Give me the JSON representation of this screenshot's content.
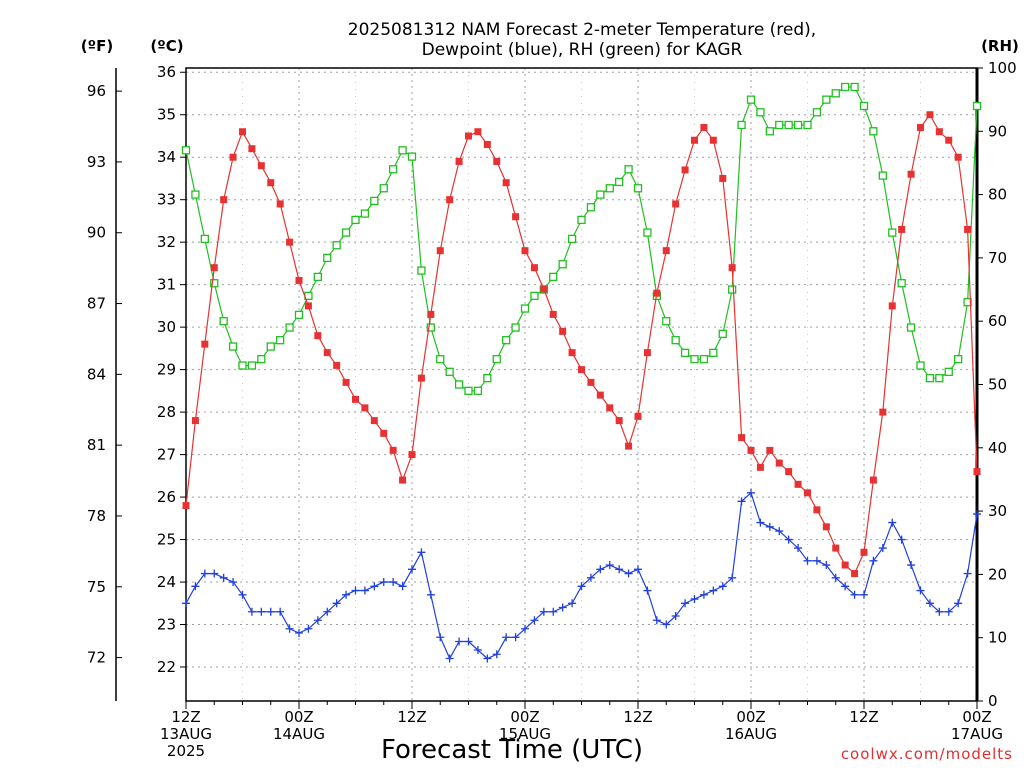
{
  "chart_data": {
    "type": "line",
    "title_line1": "2025081312 NAM Forecast 2-meter Temperature (red),",
    "title_line2": "Dewpoint (blue), RH (green) for KAGR",
    "xlabel": "Forecast Time (UTC)",
    "credit": "coolwx.com/modelts",
    "units": {
      "fahrenheit": "(ºF)",
      "celsius": "(ºC)",
      "rh": "(RH)"
    },
    "x_hours": [
      0,
      72
    ],
    "x_ticks": [
      {
        "hour": 0,
        "line1": "12Z",
        "line2": "13AUG",
        "line3": "2025"
      },
      {
        "hour": 12,
        "line1": "00Z",
        "line2": "14AUG",
        "line3": ""
      },
      {
        "hour": 24,
        "line1": "12Z",
        "line2": "",
        "line3": ""
      },
      {
        "hour": 36,
        "line1": "00Z",
        "line2": "15AUG",
        "line3": ""
      },
      {
        "hour": 48,
        "line1": "12Z",
        "line2": "",
        "line3": ""
      },
      {
        "hour": 60,
        "line1": "00Z",
        "line2": "16AUG",
        "line3": ""
      },
      {
        "hour": 72,
        "line1": "12Z",
        "line2": "",
        "line3": ""
      },
      {
        "hour": 84,
        "line1": "00Z",
        "line2": "17AUG",
        "line3": ""
      }
    ],
    "x_range": [
      0,
      84
    ],
    "celsius_range": [
      21.2,
      36.1
    ],
    "celsius_ticks": [
      22,
      23,
      24,
      25,
      26,
      27,
      28,
      29,
      30,
      31,
      32,
      33,
      34,
      35,
      36
    ],
    "fahrenheit_ticks": [
      72,
      75,
      78,
      81,
      84,
      87,
      90,
      93,
      96
    ],
    "rh_range": [
      0,
      100
    ],
    "rh_ticks": [
      0,
      10,
      20,
      30,
      40,
      50,
      60,
      70,
      80,
      90,
      100
    ],
    "colors": {
      "temperature": "#e63232",
      "dewpoint": "#2040e0",
      "rh": "#20c020",
      "grid": "#a0a0a0"
    },
    "series": [
      {
        "name": "Temperature",
        "axis": "celsius",
        "marker": "square-filled",
        "points": [
          [
            0,
            25.8
          ],
          [
            1,
            27.8
          ],
          [
            2,
            29.6
          ],
          [
            3,
            31.4
          ],
          [
            4,
            33.0
          ],
          [
            5,
            34.0
          ],
          [
            6,
            34.6
          ],
          [
            7,
            34.2
          ],
          [
            8,
            33.8
          ],
          [
            9,
            33.4
          ],
          [
            10,
            32.9
          ],
          [
            11,
            32.0
          ],
          [
            12,
            31.1
          ],
          [
            13,
            30.5
          ],
          [
            14,
            29.8
          ],
          [
            15,
            29.4
          ],
          [
            16,
            29.1
          ],
          [
            17,
            28.7
          ],
          [
            18,
            28.3
          ],
          [
            19,
            28.1
          ],
          [
            20,
            27.8
          ],
          [
            21,
            27.5
          ],
          [
            22,
            27.1
          ],
          [
            23,
            26.4
          ],
          [
            24,
            27.0
          ],
          [
            25,
            28.8
          ],
          [
            26,
            30.3
          ],
          [
            27,
            31.8
          ],
          [
            28,
            33.0
          ],
          [
            29,
            33.9
          ],
          [
            30,
            34.5
          ],
          [
            31,
            34.6
          ],
          [
            32,
            34.3
          ],
          [
            33,
            33.9
          ],
          [
            34,
            33.4
          ],
          [
            35,
            32.6
          ],
          [
            36,
            31.8
          ],
          [
            37,
            31.4
          ],
          [
            38,
            30.9
          ],
          [
            39,
            30.3
          ],
          [
            40,
            29.9
          ],
          [
            41,
            29.4
          ],
          [
            42,
            29.0
          ],
          [
            43,
            28.7
          ],
          [
            44,
            28.4
          ],
          [
            45,
            28.1
          ],
          [
            46,
            27.8
          ],
          [
            47,
            27.2
          ],
          [
            48,
            27.9
          ],
          [
            49,
            29.4
          ],
          [
            50,
            30.8
          ],
          [
            51,
            31.8
          ],
          [
            52,
            32.9
          ],
          [
            53,
            33.7
          ],
          [
            54,
            34.4
          ],
          [
            55,
            34.7
          ],
          [
            56,
            34.4
          ],
          [
            57,
            33.5
          ],
          [
            58,
            31.4
          ],
          [
            59,
            27.4
          ],
          [
            60,
            27.1
          ],
          [
            61,
            26.7
          ],
          [
            62,
            27.1
          ],
          [
            63,
            26.8
          ],
          [
            64,
            26.6
          ],
          [
            65,
            26.3
          ],
          [
            66,
            26.1
          ],
          [
            67,
            25.7
          ],
          [
            68,
            25.3
          ],
          [
            69,
            24.8
          ],
          [
            70,
            24.4
          ],
          [
            71,
            24.2
          ],
          [
            72,
            24.7
          ],
          [
            73,
            26.4
          ],
          [
            74,
            28.0
          ],
          [
            75,
            30.5
          ],
          [
            76,
            32.3
          ],
          [
            77,
            33.6
          ],
          [
            78,
            34.7
          ],
          [
            79,
            35.0
          ],
          [
            80,
            34.6
          ],
          [
            81,
            34.4
          ],
          [
            82,
            34.0
          ],
          [
            83,
            32.3
          ],
          [
            84,
            26.6
          ]
        ]
      },
      {
        "name": "Dewpoint",
        "axis": "celsius",
        "marker": "plus",
        "points": [
          [
            0,
            23.5
          ],
          [
            1,
            23.9
          ],
          [
            2,
            24.2
          ],
          [
            3,
            24.2
          ],
          [
            4,
            24.1
          ],
          [
            5,
            24.0
          ],
          [
            6,
            23.7
          ],
          [
            7,
            23.3
          ],
          [
            8,
            23.3
          ],
          [
            9,
            23.3
          ],
          [
            10,
            23.3
          ],
          [
            11,
            22.9
          ],
          [
            12,
            22.8
          ],
          [
            13,
            22.9
          ],
          [
            14,
            23.1
          ],
          [
            15,
            23.3
          ],
          [
            16,
            23.5
          ],
          [
            17,
            23.7
          ],
          [
            18,
            23.8
          ],
          [
            19,
            23.8
          ],
          [
            20,
            23.9
          ],
          [
            21,
            24.0
          ],
          [
            22,
            24.0
          ],
          [
            23,
            23.9
          ],
          [
            24,
            24.3
          ],
          [
            25,
            24.7
          ],
          [
            26,
            23.7
          ],
          [
            27,
            22.7
          ],
          [
            28,
            22.2
          ],
          [
            29,
            22.6
          ],
          [
            30,
            22.6
          ],
          [
            31,
            22.4
          ],
          [
            32,
            22.2
          ],
          [
            33,
            22.3
          ],
          [
            34,
            22.7
          ],
          [
            35,
            22.7
          ],
          [
            36,
            22.9
          ],
          [
            37,
            23.1
          ],
          [
            38,
            23.3
          ],
          [
            39,
            23.3
          ],
          [
            40,
            23.4
          ],
          [
            41,
            23.5
          ],
          [
            42,
            23.9
          ],
          [
            43,
            24.1
          ],
          [
            44,
            24.3
          ],
          [
            45,
            24.4
          ],
          [
            46,
            24.3
          ],
          [
            47,
            24.2
          ],
          [
            48,
            24.3
          ],
          [
            49,
            23.8
          ],
          [
            50,
            23.1
          ],
          [
            51,
            23.0
          ],
          [
            52,
            23.2
          ],
          [
            53,
            23.5
          ],
          [
            54,
            23.6
          ],
          [
            55,
            23.7
          ],
          [
            56,
            23.8
          ],
          [
            57,
            23.9
          ],
          [
            58,
            24.1
          ],
          [
            59,
            25.9
          ],
          [
            60,
            26.1
          ],
          [
            61,
            25.4
          ],
          [
            62,
            25.3
          ],
          [
            63,
            25.2
          ],
          [
            64,
            25.0
          ],
          [
            65,
            24.8
          ],
          [
            66,
            24.5
          ],
          [
            67,
            24.5
          ],
          [
            68,
            24.4
          ],
          [
            69,
            24.1
          ],
          [
            70,
            23.9
          ],
          [
            71,
            23.7
          ],
          [
            72,
            23.7
          ],
          [
            73,
            24.5
          ],
          [
            74,
            24.8
          ],
          [
            75,
            25.4
          ],
          [
            76,
            25.0
          ],
          [
            77,
            24.4
          ],
          [
            78,
            23.8
          ],
          [
            79,
            23.5
          ],
          [
            80,
            23.3
          ],
          [
            81,
            23.3
          ],
          [
            82,
            23.5
          ],
          [
            83,
            24.2
          ],
          [
            84,
            25.6
          ]
        ]
      },
      {
        "name": "RH",
        "axis": "rh",
        "marker": "square-open",
        "points": [
          [
            0,
            87
          ],
          [
            1,
            80
          ],
          [
            2,
            73
          ],
          [
            3,
            66
          ],
          [
            4,
            60
          ],
          [
            5,
            56
          ],
          [
            6,
            53
          ],
          [
            7,
            53
          ],
          [
            8,
            54
          ],
          [
            9,
            56
          ],
          [
            10,
            57
          ],
          [
            11,
            59
          ],
          [
            12,
            61
          ],
          [
            13,
            64
          ],
          [
            14,
            67
          ],
          [
            15,
            70
          ],
          [
            16,
            72
          ],
          [
            17,
            74
          ],
          [
            18,
            76
          ],
          [
            19,
            77
          ],
          [
            20,
            79
          ],
          [
            21,
            81
          ],
          [
            22,
            84
          ],
          [
            23,
            87
          ],
          [
            24,
            86
          ],
          [
            25,
            68
          ],
          [
            26,
            59
          ],
          [
            27,
            54
          ],
          [
            28,
            52
          ],
          [
            29,
            50
          ],
          [
            30,
            49
          ],
          [
            31,
            49
          ],
          [
            32,
            51
          ],
          [
            33,
            54
          ],
          [
            34,
            57
          ],
          [
            35,
            59
          ],
          [
            36,
            62
          ],
          [
            37,
            64
          ],
          [
            38,
            65
          ],
          [
            39,
            67
          ],
          [
            40,
            69
          ],
          [
            41,
            73
          ],
          [
            42,
            76
          ],
          [
            43,
            78
          ],
          [
            44,
            80
          ],
          [
            45,
            81
          ],
          [
            46,
            82
          ],
          [
            47,
            84
          ],
          [
            48,
            81
          ],
          [
            49,
            74
          ],
          [
            50,
            64
          ],
          [
            51,
            60
          ],
          [
            52,
            57
          ],
          [
            53,
            55
          ],
          [
            54,
            54
          ],
          [
            55,
            54
          ],
          [
            56,
            55
          ],
          [
            57,
            58
          ],
          [
            58,
            65
          ],
          [
            59,
            91
          ],
          [
            60,
            95
          ],
          [
            61,
            93
          ],
          [
            62,
            90
          ],
          [
            63,
            91
          ],
          [
            64,
            91
          ],
          [
            65,
            91
          ],
          [
            66,
            91
          ],
          [
            67,
            93
          ],
          [
            68,
            95
          ],
          [
            69,
            96
          ],
          [
            70,
            97
          ],
          [
            71,
            97
          ],
          [
            72,
            94
          ],
          [
            73,
            90
          ],
          [
            74,
            83
          ],
          [
            75,
            74
          ],
          [
            76,
            66
          ],
          [
            77,
            59
          ],
          [
            78,
            53
          ],
          [
            79,
            51
          ],
          [
            80,
            51
          ],
          [
            81,
            52
          ],
          [
            82,
            54
          ],
          [
            83,
            63
          ],
          [
            84,
            94
          ]
        ]
      }
    ]
  }
}
